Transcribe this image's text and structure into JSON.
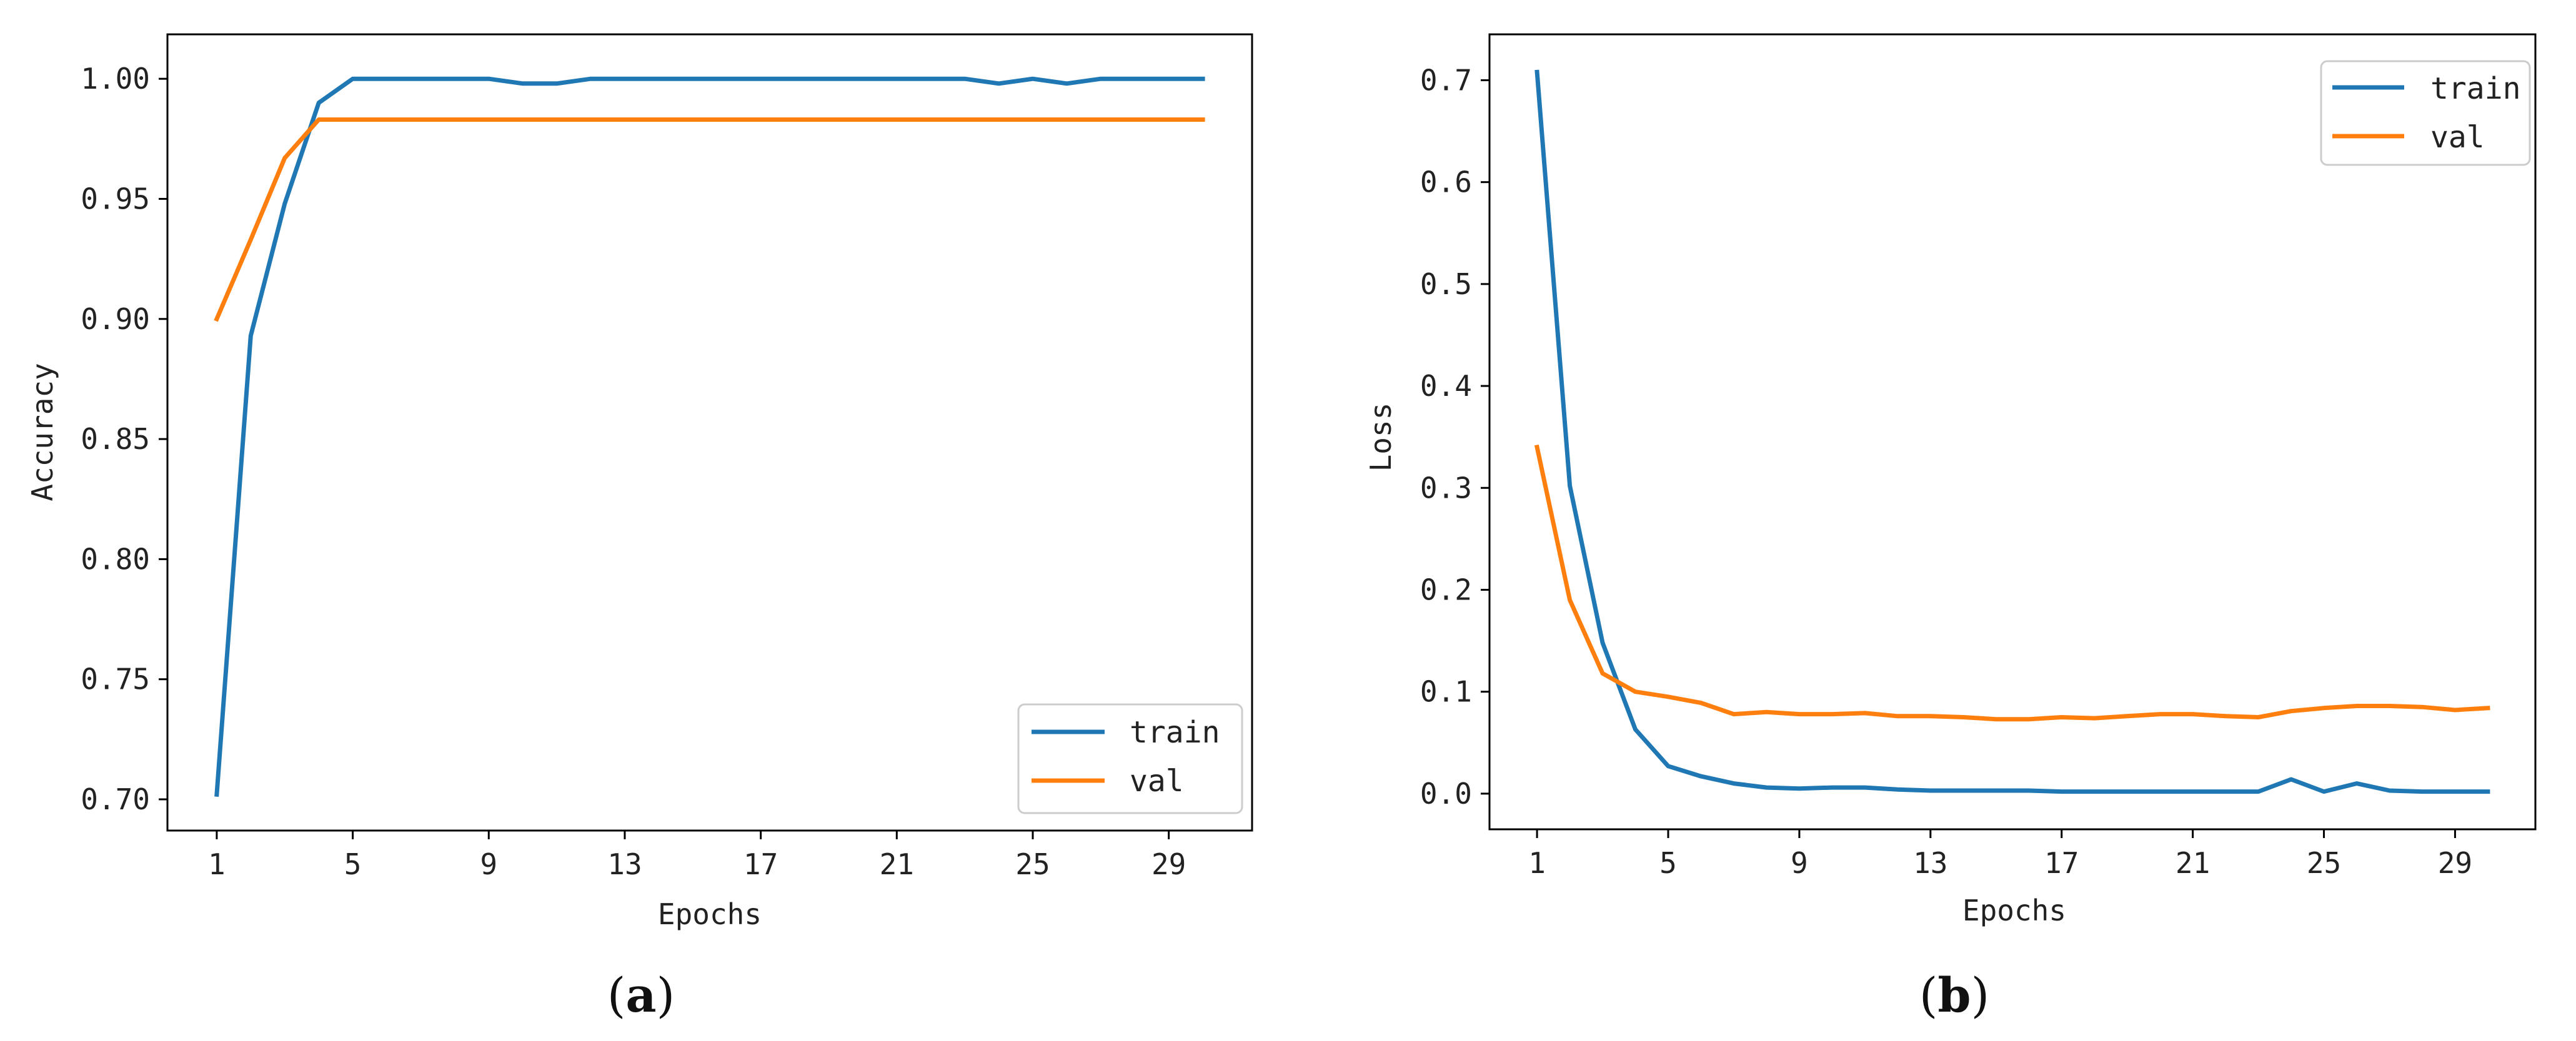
{
  "figure": {
    "panels": [
      {
        "label_text": "a"
      },
      {
        "label_text": "b"
      }
    ],
    "colors": {
      "train": "#1f77b4",
      "val": "#ff7f0e",
      "axis": "#000000",
      "text": "#222222"
    }
  },
  "chart_data": [
    {
      "type": "line",
      "title": "",
      "xlabel": "Epochs",
      "ylabel": "Accuracy",
      "x": [
        1,
        2,
        3,
        4,
        5,
        6,
        7,
        8,
        9,
        10,
        11,
        12,
        13,
        14,
        15,
        16,
        17,
        18,
        19,
        20,
        21,
        22,
        23,
        24,
        25,
        26,
        27,
        28,
        29,
        30
      ],
      "xticks": [
        1,
        5,
        9,
        13,
        17,
        21,
        25,
        29
      ],
      "xlim": [
        -0.45,
        31.45
      ],
      "ylim": [
        0.687,
        1.0185
      ],
      "yticks": [
        0.7,
        0.75,
        0.8,
        0.85,
        0.9,
        0.95,
        1.0
      ],
      "ytick_labels": [
        "0.70",
        "0.75",
        "0.80",
        "0.85",
        "0.90",
        "0.95",
        "1.00"
      ],
      "grid": false,
      "legend": "lower-right",
      "series": [
        {
          "name": "train",
          "values": [
            0.702,
            0.893,
            0.948,
            0.99,
            1.0,
            1.0,
            1.0,
            1.0,
            1.0,
            0.998,
            0.998,
            1.0,
            1.0,
            1.0,
            1.0,
            1.0,
            1.0,
            1.0,
            1.0,
            1.0,
            1.0,
            1.0,
            1.0,
            0.998,
            1.0,
            0.998,
            1.0,
            1.0,
            1.0,
            1.0
          ]
        },
        {
          "name": "val",
          "values": [
            0.9,
            0.933,
            0.967,
            0.983,
            0.983,
            0.983,
            0.983,
            0.983,
            0.983,
            0.983,
            0.983,
            0.983,
            0.983,
            0.983,
            0.983,
            0.983,
            0.983,
            0.983,
            0.983,
            0.983,
            0.983,
            0.983,
            0.983,
            0.983,
            0.983,
            0.983,
            0.983,
            0.983,
            0.983,
            0.983
          ]
        }
      ]
    },
    {
      "type": "line",
      "title": "",
      "xlabel": "Epochs",
      "ylabel": "Loss",
      "x": [
        1,
        2,
        3,
        4,
        5,
        6,
        7,
        8,
        9,
        10,
        11,
        12,
        13,
        14,
        15,
        16,
        17,
        18,
        19,
        20,
        21,
        22,
        23,
        24,
        25,
        26,
        27,
        28,
        29,
        30
      ],
      "xticks": [
        1,
        5,
        9,
        13,
        17,
        21,
        25,
        29
      ],
      "xlim": [
        -0.45,
        31.45
      ],
      "ylim": [
        -0.035,
        0.745
      ],
      "yticks": [
        0.0,
        0.1,
        0.2,
        0.3,
        0.4,
        0.5,
        0.6,
        0.7
      ],
      "ytick_labels": [
        "0.0",
        "0.1",
        "0.2",
        "0.3",
        "0.4",
        "0.5",
        "0.6",
        "0.7"
      ],
      "grid": false,
      "legend": "upper-right",
      "series": [
        {
          "name": "train",
          "values": [
            0.708,
            0.302,
            0.148,
            0.063,
            0.027,
            0.017,
            0.01,
            0.006,
            0.005,
            0.006,
            0.006,
            0.004,
            0.003,
            0.003,
            0.003,
            0.003,
            0.002,
            0.002,
            0.002,
            0.002,
            0.002,
            0.002,
            0.002,
            0.014,
            0.002,
            0.01,
            0.003,
            0.002,
            0.002,
            0.002
          ]
        },
        {
          "name": "val",
          "values": [
            0.34,
            0.19,
            0.118,
            0.1,
            0.095,
            0.089,
            0.078,
            0.08,
            0.078,
            0.078,
            0.079,
            0.076,
            0.076,
            0.075,
            0.073,
            0.073,
            0.075,
            0.074,
            0.076,
            0.078,
            0.078,
            0.076,
            0.075,
            0.081,
            0.084,
            0.086,
            0.086,
            0.085,
            0.082,
            0.084
          ]
        }
      ]
    }
  ]
}
